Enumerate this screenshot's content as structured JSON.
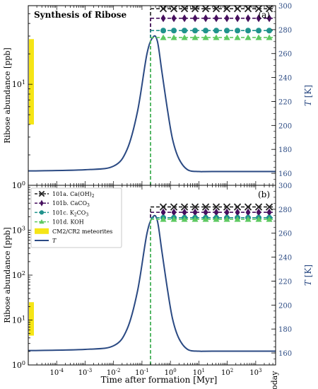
{
  "figure": {
    "xlabel": "Time after formation [Myr]",
    "today_label": "today"
  },
  "chart_data": [
    {
      "type": "line",
      "panel": "(a)",
      "title": "Synthesis of Ribose",
      "ylabel": "Ribose abundance [ppb]",
      "y2label": "T [K]",
      "xlabel": "",
      "xscale": "log",
      "yscale": "log",
      "xlim": [
        1e-05,
        5000
      ],
      "ylim": [
        1,
        60
      ],
      "y2lim": [
        150,
        300
      ],
      "y_ticks": [
        1,
        10
      ],
      "y_tick_labels": [
        "10^0",
        "10^1"
      ],
      "y2_ticks": [
        160,
        180,
        200,
        220,
        240,
        260,
        280,
        300
      ],
      "x_tick_labels": [],
      "meteorite_band": {
        "name": "CM2/CR2 meteorites",
        "min": 4.0,
        "max": 28.0,
        "color": "#f5e516"
      },
      "temperature": {
        "name": "T",
        "color": "#2b4a83",
        "x": [
          1e-05,
          0.001,
          0.01,
          0.03,
          0.07,
          0.15,
          0.25,
          0.35,
          0.5,
          0.8,
          1.2,
          2,
          4,
          10,
          30,
          5000
        ],
        "y": [
          162,
          163,
          166,
          180,
          212,
          260,
          274,
          270,
          245,
          212,
          188,
          172,
          163,
          161.5,
          161.5,
          161.5
        ]
      },
      "series": [
        {
          "name": "101a. Ca(OH)2",
          "marker": "x",
          "color": "#222222",
          "value": 56,
          "x_start": 0.2
        },
        {
          "name": "101b. CaCO3",
          "marker": "diamond",
          "color": "#46105e",
          "value": 45,
          "x_start": 0.2
        },
        {
          "name": "101c. K2CO3",
          "marker": "circle",
          "color": "#20928c",
          "value": 34,
          "x_start": 0.2
        },
        {
          "name": "101d. KOH",
          "marker": "triangle",
          "color": "#5ec962",
          "value": 29,
          "x_start": 0.2
        }
      ]
    },
    {
      "type": "line",
      "panel": "(b)",
      "title": "",
      "ylabel": "Ribose abundance [ppb]",
      "y2label": "T [K]",
      "xlabel": "Time after formation [Myr]",
      "xscale": "log",
      "yscale": "log",
      "xlim": [
        1e-05,
        5000
      ],
      "ylim": [
        1,
        10000
      ],
      "y2lim": [
        150,
        300
      ],
      "y_ticks": [
        1,
        10,
        100,
        1000
      ],
      "y_tick_labels": [
        "10^0",
        "10^1",
        "10^2",
        "10^3"
      ],
      "y2_ticks": [
        160,
        180,
        200,
        220,
        240,
        260,
        280,
        300
      ],
      "x_ticks": [
        0.0001,
        0.001,
        0.01,
        0.1,
        1,
        10,
        100,
        1000
      ],
      "x_tick_labels": [
        "10^-4",
        "10^-3",
        "10^-2",
        "10^-1",
        "10^0",
        "10^1",
        "10^2",
        "10^3"
      ],
      "meteorite_band": {
        "name": "CM2/CR2 meteorites",
        "min": 4.5,
        "max": 25.0,
        "color": "#f5e516"
      },
      "temperature": {
        "name": "T",
        "color": "#2b4a83",
        "x": [
          1e-05,
          0.001,
          0.01,
          0.03,
          0.07,
          0.15,
          0.25,
          0.35,
          0.5,
          0.8,
          1.2,
          2,
          4,
          10,
          30,
          5000
        ],
        "y": [
          162,
          163,
          166,
          180,
          212,
          260,
          274,
          270,
          245,
          212,
          188,
          172,
          163,
          161.5,
          161.5,
          161.5
        ]
      },
      "series": [
        {
          "name": "101a. Ca(OH)2",
          "marker": "x",
          "color": "#222222",
          "value": 3300,
          "x_start": 0.2
        },
        {
          "name": "101b. CaCO3",
          "marker": "diamond",
          "color": "#46105e",
          "value": 2500,
          "x_start": 0.2
        },
        {
          "name": "101c. K2CO3",
          "marker": "circle",
          "color": "#20928c",
          "value": 1900,
          "x_start": 0.2
        },
        {
          "name": "101d. KOH",
          "marker": "triangle",
          "color": "#5ec962",
          "value": 1750,
          "x_start": 0.2
        }
      ]
    }
  ],
  "legend": {
    "entries": [
      {
        "key": "a",
        "prefix": "101a. Ca(OH)",
        "sub": "2",
        "marker": "x",
        "color": "#222222"
      },
      {
        "key": "b",
        "prefix": "101b. CaCO",
        "sub": "3",
        "marker": "diamond",
        "color": "#46105e"
      },
      {
        "key": "c",
        "prefix": "101c. K",
        "sub": "2",
        "mid": "CO",
        "sub2": "3",
        "marker": "circle",
        "color": "#20928c"
      },
      {
        "key": "d",
        "prefix": "101d. KOH",
        "marker": "triangle",
        "color": "#5ec962"
      },
      {
        "key": "band",
        "prefix": "CM2/CR2 meteorites",
        "marker": "band",
        "color": "#f5e516"
      },
      {
        "key": "t",
        "prefix": "T",
        "marker": "line",
        "color": "#2b4a83"
      }
    ]
  }
}
